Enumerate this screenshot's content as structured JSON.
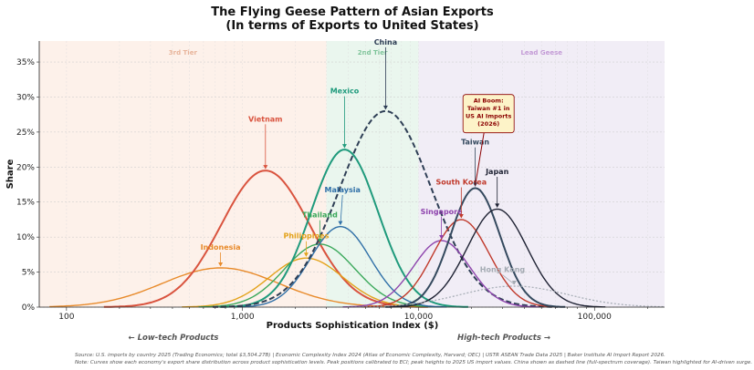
{
  "chart_data": {
    "type": "line",
    "title": "The Flying Geese Pattern of Asian Exports",
    "subtitle": "(In terms of Exports to United States)",
    "xlabel": "Products Sophistication Index ($)",
    "ylabel": "Share",
    "xscale": "log",
    "xlim": [
      70,
      250000
    ],
    "ylim": [
      0,
      38
    ],
    "x_ticks": [
      100,
      1000,
      10000,
      100000
    ],
    "x_tick_labels": [
      "100",
      "1,000",
      "10,000",
      "100,000"
    ],
    "y_ticks": [
      0,
      5,
      10,
      15,
      20,
      25,
      30,
      35
    ],
    "y_tick_labels": [
      "0%",
      "5%",
      "10%",
      "15%",
      "20%",
      "25%",
      "30%",
      "35%"
    ],
    "grid": true,
    "tiers": [
      {
        "label": "3rd Tier",
        "x_from": 70,
        "x_to": 3000,
        "color": "#fdf1ea",
        "text_color": "#e8b49a"
      },
      {
        "label": "2nd Tier",
        "x_from": 3000,
        "x_to": 10000,
        "color": "#eaf6ee",
        "text_color": "#7ec49a"
      },
      {
        "label": "Lead Geese",
        "x_from": 10000,
        "x_to": 250000,
        "color": "#f1edf6",
        "text_color": "#c39ad6"
      }
    ],
    "series": [
      {
        "name": "Indonesia",
        "color": "#e88a2a",
        "peak_x": 750,
        "peak_y": 5.6,
        "sigma": 0.33,
        "dashed": false,
        "width": 1.4,
        "label_xy": [
          750,
          8.2
        ]
      },
      {
        "name": "Vietnam",
        "color": "#d9533e",
        "peak_x": 1350,
        "peak_y": 19.5,
        "sigma": 0.25,
        "dashed": false,
        "width": 2.0,
        "label_xy": [
          1350,
          26.5
        ]
      },
      {
        "name": "Philippines",
        "color": "#e3a21a",
        "peak_x": 2300,
        "peak_y": 7.0,
        "sigma": 0.21,
        "dashed": false,
        "width": 1.4,
        "label_xy": [
          2300,
          9.8
        ]
      },
      {
        "name": "Thailand",
        "color": "#3aa85a",
        "peak_x": 2750,
        "peak_y": 9.0,
        "sigma": 0.2,
        "dashed": false,
        "width": 1.4,
        "label_xy": [
          2750,
          12.8
        ]
      },
      {
        "name": "Malaysia",
        "color": "#2f6fa7",
        "peak_x": 3600,
        "peak_y": 11.5,
        "sigma": 0.17,
        "dashed": false,
        "width": 1.4,
        "label_xy": [
          3700,
          16.4
        ]
      },
      {
        "name": "Mexico",
        "color": "#1f9a7c",
        "peak_x": 3800,
        "peak_y": 22.5,
        "sigma": 0.19,
        "dashed": false,
        "width": 2.0,
        "label_xy": [
          3800,
          30.5
        ]
      },
      {
        "name": "China",
        "color": "#2e3e55",
        "peak_x": 6500,
        "peak_y": 28.0,
        "sigma": 0.26,
        "dashed": true,
        "width": 2.0,
        "label_xy": [
          6500,
          37.5
        ]
      },
      {
        "name": "Singapore",
        "color": "#8e44ad",
        "peak_x": 13500,
        "peak_y": 9.5,
        "sigma": 0.16,
        "dashed": false,
        "width": 1.4,
        "label_xy": [
          13500,
          13.3
        ]
      },
      {
        "name": "South Korea",
        "color": "#c0392b",
        "peak_x": 17500,
        "peak_y": 12.5,
        "sigma": 0.16,
        "dashed": false,
        "width": 1.4,
        "label_xy": [
          17500,
          17.5
        ]
      },
      {
        "name": "Taiwan",
        "color": "#34495e",
        "peak_x": 21000,
        "peak_y": 17.0,
        "sigma": 0.14,
        "dashed": false,
        "width": 2.0,
        "label_xy": [
          21000,
          23.2
        ]
      },
      {
        "name": "Japan",
        "color": "#1e2233",
        "peak_x": 28000,
        "peak_y": 14.0,
        "sigma": 0.17,
        "dashed": false,
        "width": 1.4,
        "label_xy": [
          28000,
          19.0
        ]
      },
      {
        "name": "Hong Kong",
        "color": "#a4abb3",
        "peak_x": 35000,
        "peak_y": 3.0,
        "sigma": 0.3,
        "dashed": true,
        "width": 1.2,
        "label_xy": [
          30000,
          5.0
        ]
      }
    ],
    "annotation": {
      "lines": [
        "AI Boom:",
        "Taiwan #1 in",
        "US AI Imports",
        "(2026)"
      ],
      "box_xy": [
        25000,
        27.5
      ],
      "target_xy": [
        21000,
        17.0
      ]
    },
    "low_tech_label": "← Low-tech Products",
    "high_tech_label": "High-tech Products →",
    "notes": [
      "Source: U.S. imports by country 2025 (Trading Economics; total $3,504.27B) | Economic Complexity Index 2024 (Atlas of Economic Complexity, Harvard; OEC) | USTR ASEAN Trade Data 2025 | Baker Institute AI Import Report 2026.",
      "Note: Curves show each economy's export share distribution across product sophistication levels. Peak positions calibrated to ECI; peak heights to 2025 US import values. China shown as dashed line (full-spectrum coverage). Taiwan highlighted for AI-driven surge."
    ]
  }
}
